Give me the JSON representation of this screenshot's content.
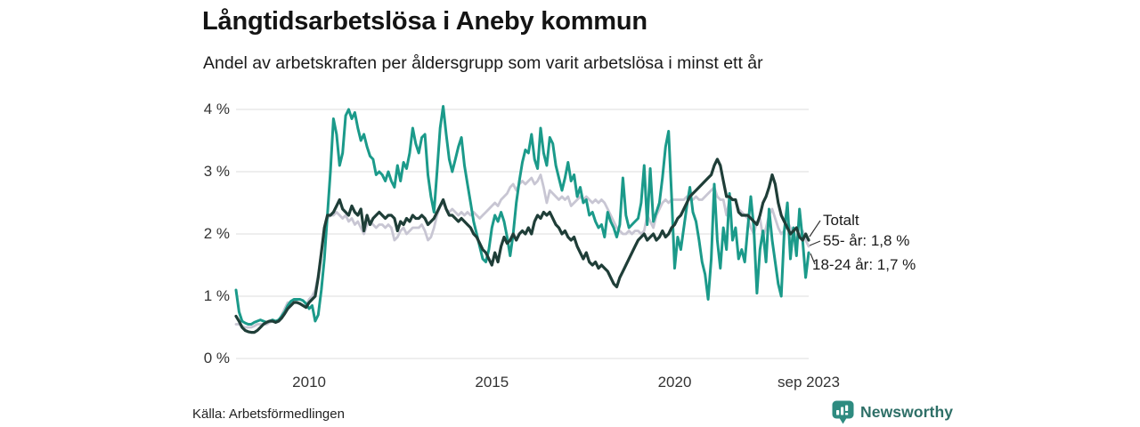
{
  "header": {
    "title": "Långtidsarbetslösa i Aneby kommun",
    "subtitle": "Andel av arbetskraften per åldersgrupp som varit arbetslösa i minst ett år"
  },
  "source": {
    "label": "Källa: Arbetsförmedlingen"
  },
  "branding": {
    "name": "Newsworthy",
    "logo_icon": "bar-chart-speech-bubble-icon",
    "logo_color": "#2e8b80",
    "text_color": "#2e6f67"
  },
  "colors": {
    "gridline": "#e4e4e4",
    "axis_text": "#333333",
    "annotation_connector": "#333333"
  },
  "chart_data": {
    "type": "line",
    "title": "Långtidsarbetslösa i Aneby kommun",
    "xlabel": "",
    "ylabel": "",
    "x_unit": "month",
    "x_start": "2008-01",
    "x_end": "2023-09",
    "ylim": [
      0,
      4.3
    ],
    "grid": true,
    "legend_position": "right-edge-annotations",
    "yticks": [
      {
        "label": "0 %",
        "value": 0
      },
      {
        "label": "1 %",
        "value": 1
      },
      {
        "label": "2 %",
        "value": 2
      },
      {
        "label": "3 %",
        "value": 3
      },
      {
        "label": "4 %",
        "value": 4
      }
    ],
    "xticks": [
      {
        "label": "2010",
        "month_index": 24
      },
      {
        "label": "2015",
        "month_index": 84
      },
      {
        "label": "2020",
        "month_index": 144
      },
      {
        "label": "sep 2023",
        "month_index": 188
      }
    ],
    "series": [
      {
        "name": "Totalt",
        "annotation": "Totalt",
        "color": "#1f3e38",
        "last_value": 1.9,
        "values": [
          0.68,
          0.6,
          0.5,
          0.45,
          0.43,
          0.42,
          0.42,
          0.45,
          0.5,
          0.55,
          0.58,
          0.6,
          0.6,
          0.58,
          0.6,
          0.65,
          0.72,
          0.8,
          0.85,
          0.9,
          0.9,
          0.88,
          0.85,
          0.82,
          0.9,
          0.95,
          1.0,
          1.3,
          1.7,
          2.1,
          2.3,
          2.3,
          2.35,
          2.45,
          2.55,
          2.4,
          2.35,
          2.3,
          2.45,
          2.35,
          2.3,
          2.4,
          2.05,
          2.3,
          2.15,
          2.25,
          2.3,
          2.35,
          2.3,
          2.25,
          2.3,
          2.3,
          2.25,
          2.05,
          2.2,
          2.15,
          2.25,
          2.2,
          2.3,
          2.25,
          2.25,
          2.3,
          2.25,
          2.15,
          2.2,
          2.25,
          2.35,
          2.45,
          2.55,
          2.4,
          2.3,
          2.3,
          2.25,
          2.2,
          2.25,
          2.2,
          2.15,
          2.1,
          2.0,
          1.95,
          1.85,
          1.75,
          1.7,
          1.6,
          1.5,
          1.7,
          1.55,
          1.8,
          1.95,
          1.85,
          1.9,
          2.0,
          1.9,
          2.0,
          2.05,
          2.0,
          2.1,
          2.0,
          2.2,
          2.3,
          2.25,
          2.35,
          2.3,
          2.35,
          2.25,
          2.15,
          2.1,
          2.0,
          2.05,
          1.95,
          1.9,
          1.95,
          1.8,
          1.7,
          1.6,
          1.7,
          1.55,
          1.5,
          1.55,
          1.45,
          1.5,
          1.45,
          1.4,
          1.3,
          1.2,
          1.15,
          1.3,
          1.4,
          1.5,
          1.6,
          1.7,
          1.8,
          1.9,
          1.95,
          2.0,
          1.9,
          1.95,
          2.0,
          1.9,
          1.95,
          2.05,
          1.95,
          2.0,
          2.1,
          2.15,
          2.25,
          2.3,
          2.4,
          2.5,
          2.6,
          2.65,
          2.7,
          2.75,
          2.8,
          2.85,
          2.9,
          2.95,
          3.1,
          3.2,
          3.1,
          2.85,
          2.6,
          2.6,
          2.55,
          2.55,
          2.35,
          2.3,
          2.3,
          2.3,
          2.25,
          2.2,
          2.15,
          2.3,
          2.5,
          2.6,
          2.75,
          2.95,
          2.8,
          2.5,
          2.3,
          2.2,
          2.1,
          2.0,
          2.05,
          2.1,
          1.95,
          1.9,
          2.0,
          1.9
        ]
      },
      {
        "name": "55- år",
        "annotation": "55- år: 1,8 %",
        "color": "#c8c6d3",
        "last_value": 1.8,
        "values": [
          0.55,
          0.55,
          0.52,
          0.5,
          0.5,
          0.5,
          0.52,
          0.55,
          0.55,
          0.55,
          0.55,
          0.58,
          0.6,
          0.58,
          0.6,
          0.7,
          0.8,
          0.9,
          0.9,
          0.92,
          0.9,
          0.88,
          0.85,
          0.85,
          0.95,
          1.0,
          1.1,
          1.35,
          1.7,
          2.05,
          2.25,
          2.3,
          2.3,
          2.35,
          2.3,
          2.25,
          2.3,
          2.2,
          2.25,
          2.15,
          2.2,
          2.1,
          2.0,
          2.15,
          2.2,
          2.15,
          2.1,
          2.15,
          2.15,
          2.1,
          2.15,
          2.1,
          1.9,
          1.95,
          2.05,
          2.1,
          2.0,
          2.05,
          2.1,
          2.1,
          2.1,
          2.15,
          2.05,
          1.9,
          1.95,
          2.1,
          2.3,
          2.45,
          2.5,
          2.4,
          2.35,
          2.4,
          2.35,
          2.3,
          2.35,
          2.3,
          2.35,
          2.3,
          2.35,
          2.3,
          2.25,
          2.3,
          2.35,
          2.4,
          2.45,
          2.5,
          2.45,
          2.55,
          2.6,
          2.65,
          2.75,
          2.8,
          2.7,
          2.8,
          2.85,
          2.8,
          2.85,
          2.9,
          2.8,
          2.85,
          2.95,
          2.75,
          2.5,
          2.7,
          2.65,
          2.6,
          2.55,
          2.6,
          2.55,
          2.6,
          2.45,
          2.5,
          2.55,
          2.6,
          2.55,
          2.6,
          2.55,
          2.5,
          2.55,
          2.5,
          2.55,
          2.5,
          2.4,
          2.3,
          2.2,
          2.1,
          2.05,
          2.0,
          2.0,
          2.05,
          2.0,
          2.05,
          2.05,
          2.0,
          2.05,
          2.3,
          2.2,
          2.1,
          2.3,
          2.4,
          2.5,
          2.55,
          2.5,
          2.55,
          2.55,
          2.55,
          2.55,
          2.55,
          2.6,
          2.55,
          2.55,
          2.6,
          2.55,
          2.55,
          2.6,
          2.65,
          2.7,
          2.75,
          2.6,
          2.55,
          2.55,
          2.3,
          2.55,
          2.55,
          2.55,
          2.4,
          2.35,
          2.3,
          2.25,
          2.1,
          2.0,
          2.2,
          2.25,
          1.95,
          2.1,
          2.3,
          2.4,
          2.25,
          2.1,
          2.0,
          2.05,
          2.2,
          2.1,
          2.0,
          1.9,
          1.95,
          2.05,
          1.9,
          1.8
        ]
      },
      {
        "name": "18-24 år",
        "annotation": "18-24 år: 1,7 %",
        "color": "#1b9a8a",
        "last_value": 1.7,
        "values": [
          1.1,
          0.75,
          0.6,
          0.57,
          0.55,
          0.55,
          0.58,
          0.6,
          0.62,
          0.6,
          0.58,
          0.6,
          0.62,
          0.6,
          0.62,
          0.68,
          0.75,
          0.85,
          0.92,
          0.95,
          0.95,
          0.95,
          0.93,
          0.88,
          0.8,
          0.85,
          0.6,
          0.7,
          1.1,
          1.6,
          2.3,
          3.0,
          3.85,
          3.6,
          3.1,
          3.3,
          3.9,
          4.0,
          3.85,
          3.95,
          3.7,
          3.5,
          3.6,
          3.4,
          3.25,
          3.2,
          2.95,
          3.0,
          2.95,
          2.85,
          3.0,
          2.85,
          2.75,
          3.1,
          2.85,
          3.15,
          3.05,
          3.3,
          3.7,
          3.45,
          3.3,
          3.55,
          3.6,
          2.95,
          2.6,
          2.35,
          3.0,
          3.7,
          4.05,
          3.6,
          3.2,
          3.0,
          3.2,
          3.4,
          3.55,
          3.1,
          2.8,
          2.5,
          2.2,
          2.0,
          1.8,
          1.6,
          1.55,
          1.75,
          2.1,
          2.3,
          2.2,
          2.35,
          2.2,
          1.95,
          1.65,
          2.0,
          2.5,
          2.85,
          3.15,
          3.35,
          3.3,
          3.6,
          3.2,
          3.05,
          3.7,
          3.3,
          3.1,
          3.55,
          3.45,
          3.1,
          2.9,
          2.7,
          2.9,
          3.15,
          2.85,
          2.95,
          2.6,
          2.75,
          2.5,
          2.55,
          2.3,
          2.35,
          2.2,
          2.1,
          2.15,
          1.95,
          2.35,
          2.2,
          2.1,
          1.95,
          2.15,
          2.9,
          2.3,
          2.1,
          2.15,
          2.2,
          2.25,
          2.5,
          3.1,
          2.15,
          3.05,
          2.2,
          2.35,
          2.5,
          2.9,
          3.4,
          3.65,
          2.6,
          1.45,
          1.95,
          1.75,
          2.1,
          2.45,
          2.75,
          2.35,
          2.2,
          1.9,
          1.55,
          1.35,
          0.95,
          1.6,
          2.8,
          1.9,
          1.45,
          2.1,
          1.75,
          2.65,
          1.9,
          2.1,
          1.6,
          1.75,
          1.55,
          2.1,
          2.6,
          2.1,
          1.05,
          1.75,
          2.05,
          1.55,
          2.4,
          1.9,
          1.55,
          1.2,
          1.0,
          2.05,
          2.5,
          1.6,
          2.1,
          1.65,
          2.4,
          1.9,
          1.3,
          1.7
        ]
      }
    ]
  }
}
